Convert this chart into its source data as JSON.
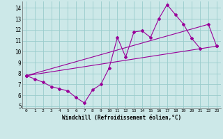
{
  "xlabel": "Windchill (Refroidissement éolien,°C)",
  "xlim": [
    -0.5,
    23.5
  ],
  "ylim": [
    4.8,
    14.6
  ],
  "yticks": [
    5,
    6,
    7,
    8,
    9,
    10,
    11,
    12,
    13,
    14
  ],
  "xticks": [
    0,
    1,
    2,
    3,
    4,
    5,
    6,
    7,
    8,
    9,
    10,
    11,
    12,
    13,
    14,
    15,
    16,
    17,
    18,
    19,
    20,
    21,
    22,
    23
  ],
  "bg_color": "#cce8e8",
  "grid_color": "#99cccc",
  "line_color": "#990099",
  "series1_x": [
    0,
    1,
    2,
    3,
    4,
    5,
    6,
    7,
    8,
    9,
    10,
    11,
    12,
    13,
    14,
    15,
    16,
    17,
    18,
    19,
    20,
    21
  ],
  "series1_y": [
    7.8,
    7.5,
    7.2,
    6.8,
    6.6,
    6.4,
    5.8,
    5.3,
    6.5,
    7.0,
    8.5,
    11.3,
    9.5,
    11.8,
    11.9,
    11.3,
    13.0,
    14.3,
    13.4,
    12.5,
    11.2,
    10.3
  ],
  "series2_x": [
    0,
    23
  ],
  "series2_y": [
    7.8,
    10.5
  ],
  "series3_x": [
    0,
    22,
    23
  ],
  "series3_y": [
    7.8,
    12.5,
    10.5
  ]
}
